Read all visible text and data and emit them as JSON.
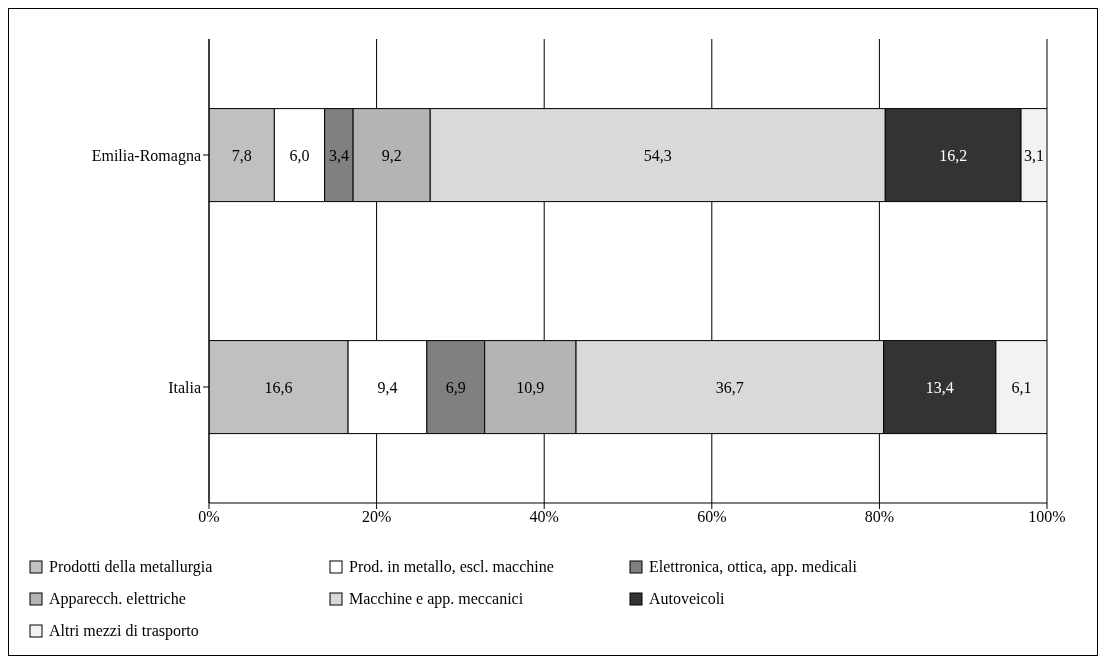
{
  "chart_data": {
    "type": "bar",
    "orientation": "horizontal",
    "stacked": true,
    "categories": [
      "Emilia-Romagna",
      "Italia"
    ],
    "series": [
      {
        "name": "Prodotti della metallurgia",
        "color": "#c0c0c0",
        "values": [
          7.8,
          16.6
        ],
        "value_labels": [
          "7,8",
          "16,6"
        ]
      },
      {
        "name": "Prod. in metallo, escl. macchine",
        "color": "#ffffff",
        "values": [
          6.0,
          9.4
        ],
        "value_labels": [
          "6,0",
          "9,4"
        ]
      },
      {
        "name": "Elettronica, ottica, app. medicali",
        "color": "#808080",
        "values": [
          3.4,
          6.9
        ],
        "value_labels": [
          "3,4",
          "6,9"
        ]
      },
      {
        "name": "Apparecch. elettriche",
        "color": "#b4b4b4",
        "values": [
          9.2,
          10.9
        ],
        "value_labels": [
          "9,2",
          "10,9"
        ]
      },
      {
        "name": "Macchine e app. meccanici",
        "color": "#d9d9d9",
        "values": [
          54.3,
          36.7
        ],
        "value_labels": [
          "54,3",
          "36,7"
        ]
      },
      {
        "name": "Autoveicoli",
        "color": "#333333",
        "values": [
          16.2,
          13.4
        ],
        "value_labels": [
          "16,2",
          "13,4"
        ]
      },
      {
        "name": "Altri mezzi di trasporto",
        "color": "#f2f2f2",
        "values": [
          3.1,
          6.1
        ],
        "value_labels": [
          "3,1",
          "6,1"
        ]
      }
    ],
    "xlim": [
      0,
      100
    ],
    "xticks": [
      {
        "value": 0,
        "label": "0%"
      },
      {
        "value": 20,
        "label": "20%"
      },
      {
        "value": 40,
        "label": "40%"
      },
      {
        "value": 60,
        "label": "60%"
      },
      {
        "value": 80,
        "label": "80%"
      },
      {
        "value": 100,
        "label": "100%"
      }
    ],
    "grid": "x",
    "legend": "bottom"
  }
}
